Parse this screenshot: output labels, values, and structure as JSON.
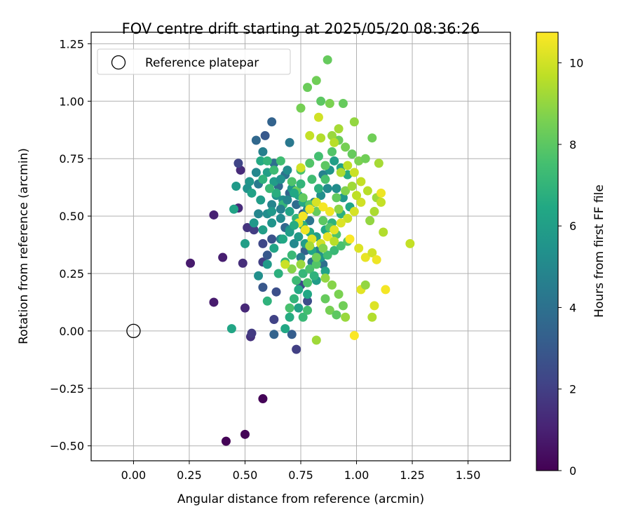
{
  "chart_data": {
    "type": "scatter",
    "title": "FOV centre drift starting at 2025/05/20 08:36:26",
    "xlabel": "Angular distance from reference (arcmin)",
    "ylabel": "Rotation from reference (arcmin)",
    "xlim": [
      -0.19,
      1.69
    ],
    "ylim": [
      -0.565,
      1.3
    ],
    "xticks": [
      0.0,
      0.25,
      0.5,
      0.75,
      1.0,
      1.25,
      1.5
    ],
    "xtick_labels": [
      "0.00",
      "0.25",
      "0.50",
      "0.75",
      "1.00",
      "1.25",
      "1.50"
    ],
    "yticks": [
      -0.5,
      -0.25,
      0.0,
      0.25,
      0.5,
      0.75,
      1.0,
      1.25
    ],
    "ytick_labels": [
      "−0.50",
      "−0.25",
      "0.00",
      "0.25",
      "0.50",
      "0.75",
      "1.00",
      "1.25"
    ],
    "grid": true,
    "legend": {
      "placement": "upper-left",
      "entries": [
        {
          "label": "Reference platepar",
          "marker": "open-circle"
        }
      ]
    },
    "reference_point": {
      "x": 0.0,
      "y": 0.0
    },
    "colorbar": {
      "label": "Hours from first FF file",
      "colormap": "viridis",
      "range": [
        0,
        10.75
      ],
      "ticks": [
        0,
        2,
        4,
        6,
        8,
        10
      ],
      "tick_labels": [
        "0",
        "2",
        "4",
        "6",
        "8",
        "10"
      ]
    },
    "series": [
      {
        "points": [
          [
            0.415,
            -0.48,
            0.05
          ],
          [
            0.5,
            -0.45,
            0.05
          ],
          [
            0.58,
            -0.295,
            0.1
          ],
          [
            0.255,
            0.295,
            0.8
          ],
          [
            0.4,
            0.32,
            0.9
          ],
          [
            0.36,
            0.125,
            0.8
          ],
          [
            0.36,
            0.505,
            1.0
          ],
          [
            0.47,
            0.535,
            1.3
          ],
          [
            0.49,
            0.295,
            1.4
          ],
          [
            0.5,
            0.1,
            1.2
          ],
          [
            0.525,
            -0.025,
            1.5
          ],
          [
            0.53,
            -0.01,
            1.8
          ],
          [
            0.48,
            0.7,
            1.3
          ],
          [
            0.47,
            0.73,
            2.2
          ],
          [
            0.51,
            0.45,
            1.6
          ],
          [
            0.54,
            0.44,
            1.9
          ],
          [
            0.58,
            0.3,
            2.0
          ],
          [
            0.58,
            0.38,
            2.3
          ],
          [
            0.63,
            0.05,
            2.1
          ],
          [
            0.73,
            -0.08,
            2.0
          ],
          [
            0.71,
            -0.015,
            3.2
          ],
          [
            0.63,
            -0.015,
            3.4
          ],
          [
            0.58,
            0.19,
            2.9
          ],
          [
            0.64,
            0.17,
            2.6
          ],
          [
            0.6,
            0.33,
            3.0
          ],
          [
            0.62,
            0.4,
            2.7
          ],
          [
            0.75,
            0.2,
            2.4
          ],
          [
            0.78,
            0.13,
            2.5
          ],
          [
            0.77,
            0.35,
            3.3
          ],
          [
            0.62,
            0.91,
            3.4
          ],
          [
            0.59,
            0.85,
            3.0
          ],
          [
            0.55,
            0.83,
            3.6
          ],
          [
            0.7,
            0.82,
            4.3
          ],
          [
            0.58,
            0.78,
            4.6
          ],
          [
            0.63,
            0.73,
            3.9
          ],
          [
            0.68,
            0.68,
            4.1
          ],
          [
            0.56,
            0.64,
            4.4
          ],
          [
            0.65,
            0.63,
            3.7
          ],
          [
            0.7,
            0.6,
            3.5
          ],
          [
            0.73,
            0.55,
            3.8
          ],
          [
            0.76,
            0.51,
            3.2
          ],
          [
            0.79,
            0.48,
            4.2
          ],
          [
            0.68,
            0.45,
            3.6
          ],
          [
            0.66,
            0.4,
            4.8
          ],
          [
            0.72,
            0.38,
            5.0
          ],
          [
            0.75,
            0.32,
            4.5
          ],
          [
            0.8,
            0.3,
            4.1
          ],
          [
            0.85,
            0.29,
            3.9
          ],
          [
            0.83,
            0.35,
            4.6
          ],
          [
            0.6,
            0.51,
            5.2
          ],
          [
            0.62,
            0.55,
            4.8
          ],
          [
            0.67,
            0.57,
            5.3
          ],
          [
            0.64,
            0.59,
            5.5
          ],
          [
            0.55,
            0.69,
            5.0
          ],
          [
            0.52,
            0.65,
            5.6
          ],
          [
            0.51,
            0.62,
            5.4
          ],
          [
            0.53,
            0.6,
            6.1
          ],
          [
            0.57,
            0.57,
            5.9
          ],
          [
            0.62,
            0.52,
            5.7
          ],
          [
            0.66,
            0.49,
            5.1
          ],
          [
            0.7,
            0.44,
            5.4
          ],
          [
            0.74,
            0.41,
            5.8
          ],
          [
            0.77,
            0.38,
            6.0
          ],
          [
            0.8,
            0.35,
            6.3
          ],
          [
            0.84,
            0.32,
            5.6
          ],
          [
            0.86,
            0.26,
            6.2
          ],
          [
            0.82,
            0.22,
            5.9
          ],
          [
            0.78,
            0.16,
            6.4
          ],
          [
            0.74,
            0.1,
            6.1
          ],
          [
            0.7,
            0.06,
            6.6
          ],
          [
            0.68,
            0.01,
            6.4
          ],
          [
            0.44,
            0.01,
            6.3
          ],
          [
            0.5,
            0.38,
            6.0
          ],
          [
            0.45,
            0.53,
            6.2
          ],
          [
            0.46,
            0.63,
            5.8
          ],
          [
            0.57,
            0.74,
            6.5
          ],
          [
            0.6,
            0.69,
            6.0
          ],
          [
            0.63,
            0.65,
            5.9
          ],
          [
            0.66,
            0.66,
            5.4
          ],
          [
            0.69,
            0.7,
            5.2
          ],
          [
            0.71,
            0.62,
            5.6
          ],
          [
            0.74,
            0.59,
            6.1
          ],
          [
            0.76,
            0.56,
            6.5
          ],
          [
            0.78,
            0.53,
            5.0
          ],
          [
            0.81,
            0.56,
            4.9
          ],
          [
            0.84,
            0.59,
            5.3
          ],
          [
            0.87,
            0.62,
            5.1
          ],
          [
            0.85,
            0.68,
            4.7
          ],
          [
            0.88,
            0.7,
            5.5
          ],
          [
            0.9,
            0.74,
            6.0
          ],
          [
            0.93,
            0.71,
            6.2
          ],
          [
            0.96,
            0.68,
            6.6
          ],
          [
            0.91,
            0.62,
            5.2
          ],
          [
            0.94,
            0.58,
            5.7
          ],
          [
            0.97,
            0.54,
            6.3
          ],
          [
            0.93,
            0.51,
            6.8
          ],
          [
            0.89,
            0.47,
            6.9
          ],
          [
            0.86,
            0.44,
            6.4
          ],
          [
            0.82,
            0.41,
            6.0
          ],
          [
            0.79,
            0.43,
            6.6
          ],
          [
            0.76,
            0.46,
            6.8
          ],
          [
            0.73,
            0.49,
            7.0
          ],
          [
            0.7,
            0.52,
            6.2
          ],
          [
            0.67,
            0.55,
            7.1
          ],
          [
            0.64,
            0.6,
            6.7
          ],
          [
            0.61,
            0.62,
            7.2
          ],
          [
            0.58,
            0.66,
            6.9
          ],
          [
            0.6,
            0.74,
            7.0
          ],
          [
            0.63,
            0.7,
            7.3
          ],
          [
            0.66,
            0.74,
            7.4
          ],
          [
            0.6,
            0.13,
            6.9
          ],
          [
            0.72,
            0.14,
            7.0
          ],
          [
            0.76,
            0.06,
            7.2
          ],
          [
            0.78,
            0.09,
            7.5
          ],
          [
            0.7,
            0.1,
            7.6
          ],
          [
            0.73,
            0.22,
            7.3
          ],
          [
            0.76,
            0.25,
            7.1
          ],
          [
            0.79,
            0.27,
            7.6
          ],
          [
            0.82,
            0.29,
            7.8
          ],
          [
            0.87,
            0.33,
            7.4
          ],
          [
            0.9,
            0.35,
            7.2
          ],
          [
            0.93,
            0.37,
            7.6
          ],
          [
            0.96,
            0.39,
            7.9
          ],
          [
            0.91,
            0.42,
            7.7
          ],
          [
            0.88,
            0.45,
            7.8
          ],
          [
            0.85,
            0.48,
            8.0
          ],
          [
            0.82,
            0.52,
            8.2
          ],
          [
            0.79,
            0.55,
            7.9
          ],
          [
            0.76,
            0.58,
            8.1
          ],
          [
            0.73,
            0.61,
            8.3
          ],
          [
            0.71,
            0.65,
            7.7
          ],
          [
            0.75,
            0.7,
            7.6
          ],
          [
            0.79,
            0.73,
            7.8
          ],
          [
            0.83,
            0.76,
            7.5
          ],
          [
            0.86,
            0.72,
            8.0
          ],
          [
            0.89,
            0.78,
            7.8
          ],
          [
            0.92,
            0.83,
            8.3
          ],
          [
            0.95,
            0.8,
            8.5
          ],
          [
            0.98,
            0.77,
            8.2
          ],
          [
            1.01,
            0.74,
            8.6
          ],
          [
            1.04,
            0.75,
            8.4
          ],
          [
            0.86,
            0.14,
            8.2
          ],
          [
            0.88,
            0.09,
            8.5
          ],
          [
            0.91,
            0.07,
            8.0
          ],
          [
            0.94,
            0.11,
            8.4
          ],
          [
            0.92,
            0.16,
            8.6
          ],
          [
            0.89,
            0.2,
            8.8
          ],
          [
            0.86,
            0.23,
            9.0
          ],
          [
            0.95,
            0.06,
            9.1
          ],
          [
            0.82,
            -0.04,
            9.2
          ],
          [
            0.87,
            1.18,
            8.2
          ],
          [
            0.82,
            1.09,
            8.4
          ],
          [
            0.78,
            1.06,
            8.3
          ],
          [
            0.75,
            0.97,
            8.5
          ],
          [
            0.84,
            1.0,
            8.0
          ],
          [
            0.88,
            0.99,
            8.6
          ],
          [
            0.94,
            0.99,
            8.2
          ],
          [
            0.99,
            0.91,
            9.0
          ],
          [
            0.92,
            0.88,
            9.3
          ],
          [
            0.89,
            0.85,
            9.1
          ],
          [
            0.84,
            0.84,
            9.5
          ],
          [
            0.79,
            0.85,
            9.8
          ],
          [
            0.83,
            0.93,
            10.0
          ],
          [
            0.9,
            0.82,
            9.6
          ],
          [
            0.93,
            0.69,
            9.4
          ],
          [
            0.96,
            0.72,
            9.7
          ],
          [
            0.99,
            0.69,
            9.9
          ],
          [
            1.02,
            0.65,
            9.8
          ],
          [
            1.05,
            0.61,
            9.6
          ],
          [
            1.02,
            0.56,
            10.0
          ],
          [
            0.99,
            0.52,
            10.1
          ],
          [
            0.96,
            0.49,
            9.9
          ],
          [
            0.93,
            0.47,
            10.2
          ],
          [
            0.9,
            0.44,
            10.3
          ],
          [
            0.87,
            0.41,
            10.4
          ],
          [
            0.84,
            0.38,
            10.0
          ],
          [
            0.8,
            0.4,
            10.2
          ],
          [
            0.77,
            0.44,
            10.5
          ],
          [
            0.74,
            0.47,
            10.3
          ],
          [
            0.76,
            0.5,
            10.6
          ],
          [
            0.79,
            0.53,
            10.4
          ],
          [
            0.82,
            0.56,
            10.1
          ],
          [
            0.85,
            0.54,
            10.6
          ],
          [
            0.88,
            0.52,
            10.5
          ],
          [
            0.97,
            0.4,
            10.7
          ],
          [
            1.01,
            0.36,
            10.2
          ],
          [
            1.04,
            0.32,
            10.4
          ],
          [
            1.07,
            0.34,
            10.0
          ],
          [
            1.09,
            0.31,
            10.5
          ],
          [
            1.12,
            0.43,
            9.5
          ],
          [
            1.09,
            0.58,
            9.2
          ],
          [
            1.11,
            0.56,
            9.8
          ],
          [
            1.08,
            0.52,
            9.4
          ],
          [
            1.06,
            0.48,
            9.0
          ],
          [
            1.1,
            0.73,
            9.3
          ],
          [
            1.13,
            0.18,
            10.6
          ],
          [
            1.24,
            0.38,
            9.8
          ],
          [
            1.08,
            0.11,
            10.2
          ],
          [
            1.07,
            0.06,
            9.5
          ],
          [
            1.02,
            0.18,
            10.3
          ],
          [
            0.99,
            -0.02,
            10.7
          ],
          [
            1.04,
            0.2,
            9.0
          ],
          [
            1.11,
            0.6,
            10.5
          ],
          [
            1.07,
            0.84,
            8.4
          ],
          [
            0.75,
            0.71,
            10.0
          ],
          [
            0.65,
            0.25,
            6.8
          ],
          [
            0.68,
            0.3,
            7.0
          ],
          [
            0.71,
            0.33,
            7.2
          ],
          [
            0.74,
            0.18,
            6.5
          ],
          [
            0.78,
            0.21,
            7.7
          ],
          [
            0.81,
            0.24,
            6.9
          ],
          [
            0.67,
            0.4,
            6.4
          ],
          [
            0.7,
            0.43,
            5.9
          ],
          [
            0.72,
            0.46,
            6.6
          ],
          [
            0.63,
            0.36,
            6.2
          ],
          [
            0.6,
            0.29,
            5.8
          ],
          [
            0.56,
            0.24,
            5.3
          ],
          [
            0.58,
            0.44,
            6.0
          ],
          [
            0.54,
            0.47,
            5.7
          ],
          [
            0.56,
            0.51,
            4.9
          ],
          [
            0.62,
            0.47,
            5.5
          ],
          [
            0.66,
            0.53,
            4.6
          ],
          [
            0.69,
            0.57,
            4.9
          ],
          [
            0.72,
            0.6,
            6.4
          ],
          [
            0.75,
            0.64,
            7.0
          ],
          [
            0.8,
            0.66,
            7.4
          ],
          [
            0.83,
            0.62,
            6.8
          ],
          [
            0.86,
            0.66,
            7.6
          ],
          [
            0.91,
            0.58,
            8.1
          ],
          [
            0.95,
            0.61,
            8.7
          ],
          [
            0.98,
            0.63,
            9.2
          ],
          [
            1.0,
            0.59,
            9.7
          ],
          [
            0.92,
            0.53,
            8.9
          ],
          [
            0.9,
            0.39,
            9.6
          ],
          [
            0.85,
            0.36,
            8.7
          ],
          [
            0.82,
            0.32,
            8.4
          ],
          [
            0.79,
            0.37,
            9.3
          ],
          [
            0.71,
            0.27,
            8.8
          ],
          [
            0.68,
            0.29,
            9.9
          ],
          [
            0.75,
            0.29,
            9.1
          ]
        ]
      }
    ]
  }
}
